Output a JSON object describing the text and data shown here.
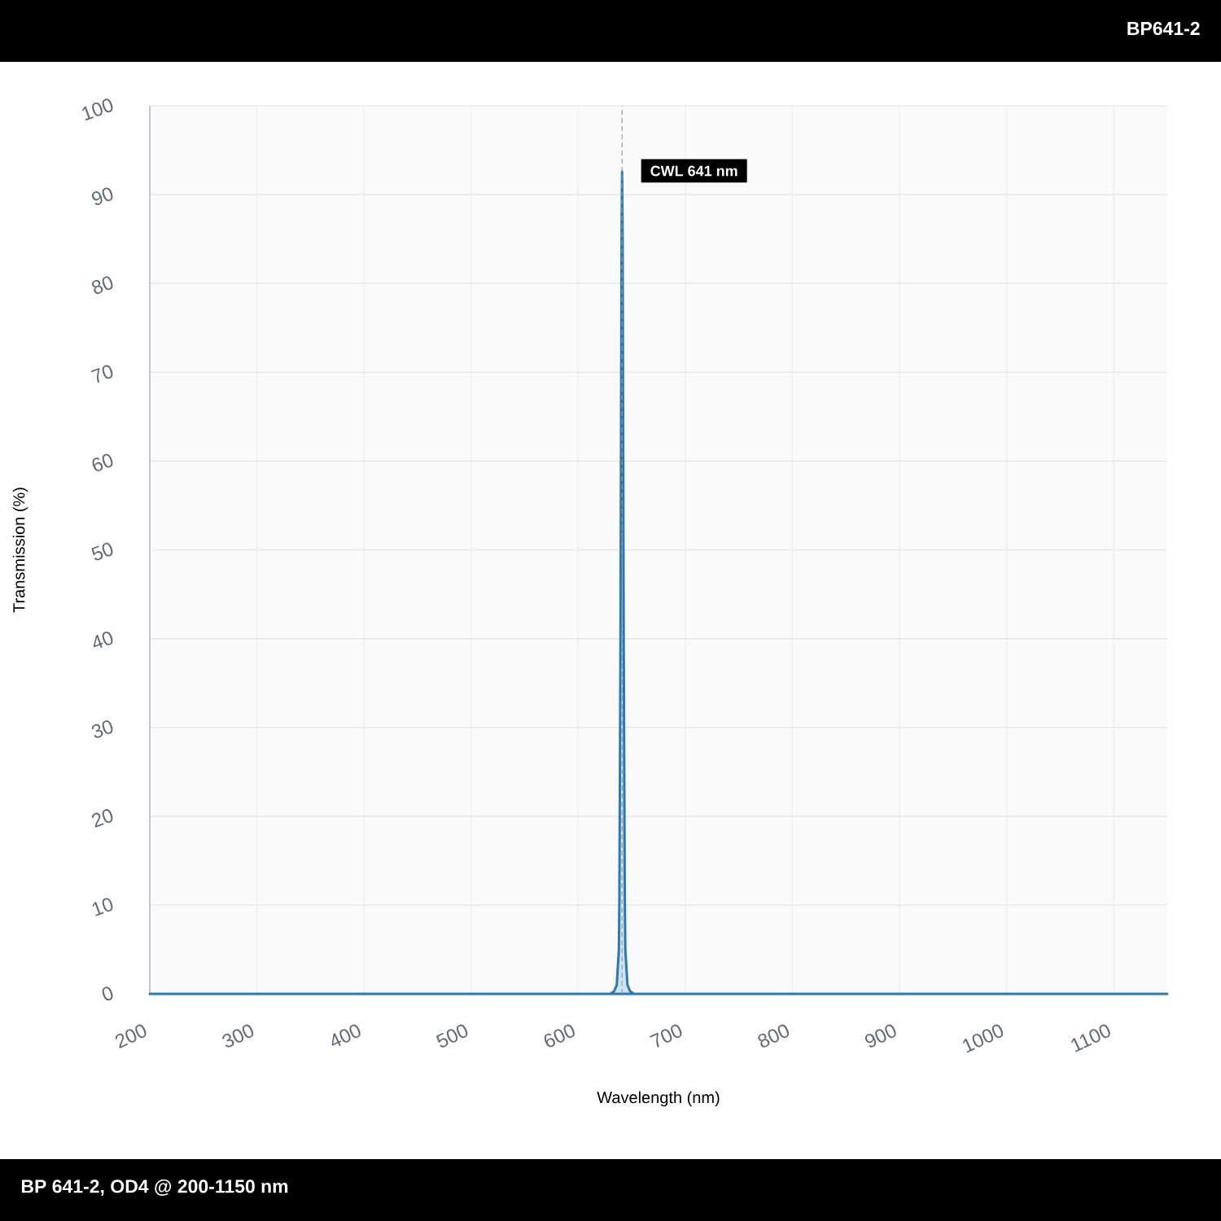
{
  "chart_data": {
    "type": "area",
    "title": "BP641-2",
    "xlabel": "Wavelength (nm)",
    "ylabel": "Transmission (%)",
    "annotations": [
      "BP 641-2, OD4 @ 200-1150 nm"
    ],
    "x": [
      200,
      630,
      633.5,
      636,
      638,
      638.5,
      639.5,
      640.5,
      641,
      641.5,
      642.5,
      643.5,
      644,
      646,
      648.5,
      652,
      1150
    ],
    "values": [
      0,
      0,
      0.3,
      1,
      5,
      11,
      40,
      85,
      92.6,
      85,
      40,
      11,
      5,
      1,
      0.3,
      0,
      0
    ],
    "color": "#2a78b5",
    "xlim": [
      200,
      1150
    ],
    "ylim": [
      0,
      100
    ],
    "xticks": [
      200,
      300,
      400,
      500,
      600,
      700,
      800,
      900,
      1000,
      1100
    ],
    "yticks": [
      0,
      10,
      20,
      30,
      40,
      50,
      60,
      70,
      80,
      90,
      100
    ],
    "grid": true,
    "ref_lines": [
      {
        "axis": "x",
        "value": 641,
        "label": "CWL 641 nm",
        "color": "#999999",
        "line_style": "dashed"
      }
    ]
  }
}
